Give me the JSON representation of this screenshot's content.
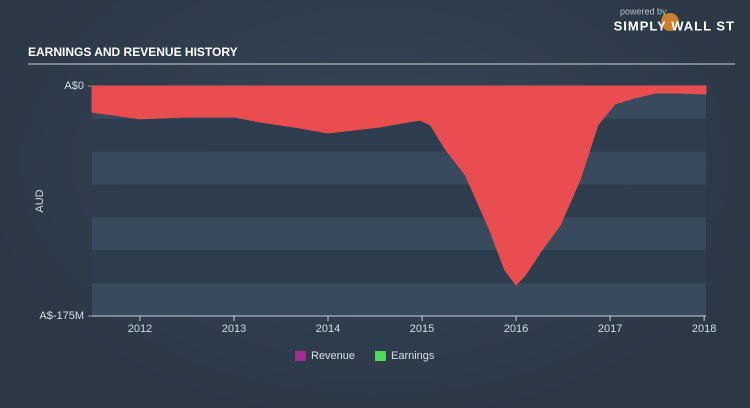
{
  "brand": {
    "powered": "powered by",
    "name": "SIMPLY WALL ST"
  },
  "chart_data": {
    "type": "area",
    "title": "EARNINGS AND REVENUE HISTORY",
    "y_label": "AUD",
    "x": [
      2011.49,
      2012.0,
      2012.48,
      2013.0,
      2013.28,
      2013.7,
      2014.0,
      2014.55,
      2014.98,
      2015.09,
      2015.24,
      2015.46,
      2015.72,
      2015.88,
      2016.0,
      2016.1,
      2016.26,
      2016.47,
      2016.68,
      2016.87,
      2017.05,
      2017.26,
      2017.48,
      2017.74,
      2018.02
    ],
    "series": [
      {
        "name": "Revenue",
        "color": "#a0308f",
        "values": [
          0,
          0,
          0,
          0,
          0,
          0,
          0,
          0,
          0,
          0,
          0,
          0,
          0,
          0,
          0,
          0,
          0,
          0,
          0,
          0,
          0,
          0,
          0,
          0,
          0
        ]
      },
      {
        "name": "Earnings",
        "color": "#4fd85c",
        "negative_color": "#e84e50",
        "values": [
          -19800000,
          -25000000,
          -23600000,
          -23600000,
          -27400000,
          -32000000,
          -35800000,
          -31200000,
          -25900000,
          -29700000,
          -47200000,
          -67700000,
          -109600000,
          -140000000,
          -151400000,
          -143800000,
          -126300000,
          -105800000,
          -71500000,
          -29700000,
          -13700000,
          -9100000,
          -5300000,
          -5300000,
          -6100000
        ]
      }
    ],
    "xlim": [
      2011.49,
      2018.02
    ],
    "xticks": [
      2012,
      2013,
      2014,
      2015,
      2016,
      2017,
      2018
    ],
    "ylim": [
      -175000000,
      0
    ],
    "yticks": [
      {
        "value": 0,
        "label": "A$0"
      },
      {
        "value": -175000000,
        "label": "A$-175M"
      }
    ],
    "legend": "bottom"
  }
}
